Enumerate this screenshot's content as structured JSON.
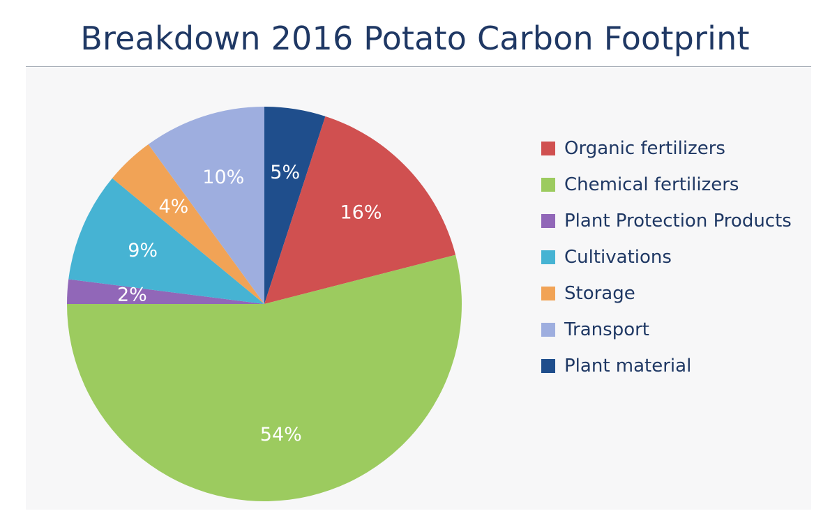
{
  "title": "Breakdown 2016 Potato Carbon Footprint",
  "chart_data": {
    "type": "pie",
    "title": "Breakdown 2016 Potato Carbon Footprint",
    "start_angle": "12 o'clock",
    "direction": "clockwise",
    "legend_position": "right",
    "slices": [
      {
        "name": "Plant material",
        "value": 5,
        "label": "5%",
        "color": "#1f4e8c"
      },
      {
        "name": "Organic fertilizers",
        "value": 16,
        "label": "16%",
        "color": "#d05050"
      },
      {
        "name": "Chemical fertilizers",
        "value": 54,
        "label": "54%",
        "color": "#9ccb5f"
      },
      {
        "name": "Plant Protection Products",
        "value": 2,
        "label": "2%",
        "color": "#9167b8"
      },
      {
        "name": "Cultivations",
        "value": 9,
        "label": "9%",
        "color": "#46b3d3"
      },
      {
        "name": "Storage",
        "value": 4,
        "label": "4%",
        "color": "#f1a356"
      },
      {
        "name": "Transport",
        "value": 10,
        "label": "10%",
        "color": "#9eaedf"
      }
    ],
    "legend": [
      {
        "name": "Organic fertilizers",
        "color": "#d05050"
      },
      {
        "name": "Chemical fertilizers",
        "color": "#9ccb5f"
      },
      {
        "name": "Plant Protection Products",
        "color": "#9167b8"
      },
      {
        "name": "Cultivations",
        "color": "#46b3d3"
      },
      {
        "name": "Storage",
        "color": "#f1a356"
      },
      {
        "name": "Transport",
        "color": "#9eaedf"
      },
      {
        "name": "Plant material",
        "color": "#1f4e8c"
      }
    ]
  }
}
